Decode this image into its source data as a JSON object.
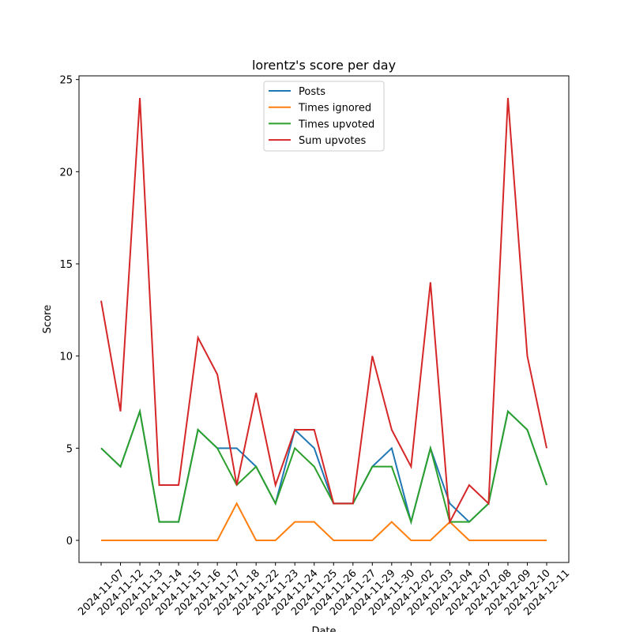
{
  "chart_data": {
    "type": "line",
    "title": "lorentz's score per day",
    "xlabel": "Date",
    "ylabel": "Score",
    "categories": [
      "2024-11-07",
      "2024-11-12",
      "2024-11-13",
      "2024-11-14",
      "2024-11-15",
      "2024-11-16",
      "2024-11-17",
      "2024-11-18",
      "2024-11-22",
      "2024-11-23",
      "2024-11-24",
      "2024-11-25",
      "2024-11-26",
      "2024-11-27",
      "2024-11-29",
      "2024-11-30",
      "2024-12-02",
      "2024-12-03",
      "2024-12-04",
      "2024-12-07",
      "2024-12-08",
      "2024-12-09",
      "2024-12-10",
      "2024-12-11"
    ],
    "series": [
      {
        "name": "Posts",
        "color": "#1f77b4",
        "values": [
          5,
          4,
          7,
          1,
          1,
          6,
          5,
          5,
          4,
          2,
          6,
          5,
          2,
          2,
          4,
          5,
          1,
          5,
          2,
          1,
          2,
          7,
          6,
          3
        ]
      },
      {
        "name": "Times ignored",
        "color": "#ff7f0e",
        "values": [
          0,
          0,
          0,
          0,
          0,
          0,
          0,
          2,
          0,
          0,
          1,
          1,
          0,
          0,
          0,
          1,
          0,
          0,
          1,
          0,
          0,
          0,
          0,
          0
        ]
      },
      {
        "name": "Times upvoted",
        "color": "#2ca02c",
        "values": [
          5,
          4,
          7,
          1,
          1,
          6,
          5,
          3,
          4,
          2,
          5,
          4,
          2,
          2,
          4,
          4,
          1,
          5,
          1,
          1,
          2,
          7,
          6,
          3
        ]
      },
      {
        "name": "Sum upvotes",
        "color": "#d62728",
        "values": [
          13,
          7,
          24,
          3,
          3,
          11,
          9,
          3,
          8,
          3,
          6,
          6,
          2,
          2,
          10,
          6,
          4,
          14,
          1,
          3,
          2,
          24,
          10,
          5
        ]
      }
    ],
    "ylim": [
      -1.2,
      25.2
    ],
    "yticks": [
      0,
      5,
      10,
      15,
      20,
      25
    ],
    "legend": "upper center"
  }
}
